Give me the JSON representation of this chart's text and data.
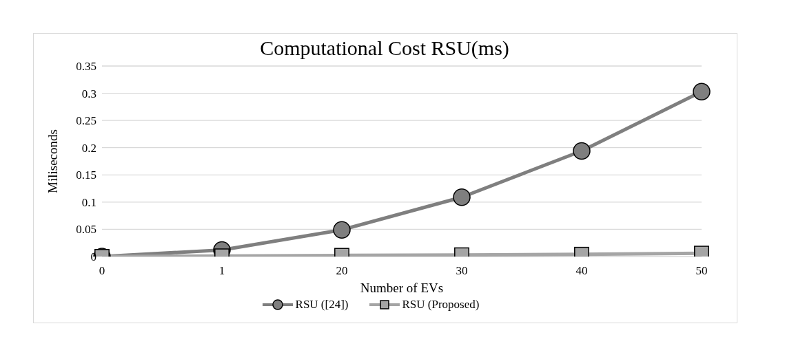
{
  "chart_data": {
    "type": "line",
    "title": "Computational Cost RSU(ms)",
    "xlabel": "Number of EVs",
    "ylabel": "Miliseconds",
    "categories": [
      "0",
      "1",
      "20",
      "30",
      "40",
      "50"
    ],
    "series": [
      {
        "name": "RSU ([24])",
        "color": "#7f7f7f",
        "marker": "circle",
        "values": [
          0,
          0.012,
          0.049,
          0.109,
          0.194,
          0.303
        ]
      },
      {
        "name": "RSU (Proposed)",
        "color": "#a5a5a5",
        "marker": "square",
        "values": [
          0,
          0.001,
          0.002,
          0.003,
          0.004,
          0.006
        ]
      }
    ],
    "ylim": [
      0,
      0.35
    ],
    "yticks": [
      0,
      0.05,
      0.1,
      0.15,
      0.2,
      0.25,
      0.3,
      0.35
    ],
    "grid": "y",
    "legend": "bottom",
    "line_style": "solid"
  }
}
